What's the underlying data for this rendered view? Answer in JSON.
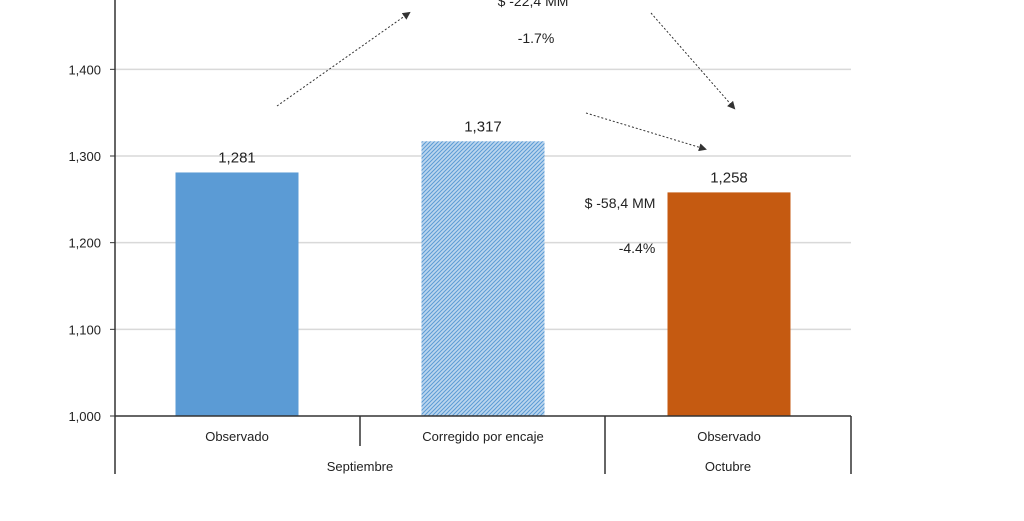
{
  "colors": {
    "septiembre_observado": "#5b9bd5",
    "hatch_base": "#bcd6ee",
    "hatch_line": "#5b9bd5",
    "octubre_observado": "#c55a11",
    "gridline": "#d9d9d9",
    "axis": "#333333",
    "text": "#222222"
  },
  "chart_data": {
    "type": "bar",
    "title": "",
    "xlabel": "",
    "ylabel": "",
    "ylim": [
      1000,
      1480
    ],
    "yticks": [
      1000,
      1100,
      1200,
      1300,
      1400
    ],
    "ytick_labels": [
      "1,000",
      "1,100",
      "1,200",
      "1,300",
      "1,400"
    ],
    "grid": true,
    "categories": [
      "Observado",
      "Corregido por encaje",
      "Observado"
    ],
    "groups": [
      {
        "label": "Septiembre",
        "categories": [
          0,
          1
        ]
      },
      {
        "label": "Octubre",
        "categories": [
          2
        ]
      }
    ],
    "values": [
      1281,
      1317,
      1258
    ],
    "value_labels": [
      "1,281",
      "1,317",
      "1,258"
    ],
    "bar_styles": [
      "solid",
      "hatched",
      "solid"
    ],
    "annotations": [
      {
        "text": "$ -22,4 MM",
        "type": "top-amount"
      },
      {
        "text": "-1.7%",
        "type": "top-percent"
      },
      {
        "text": "$ -58,4 MM",
        "type": "side-amount"
      },
      {
        "text": "-4.4%",
        "type": "side-percent"
      }
    ]
  }
}
